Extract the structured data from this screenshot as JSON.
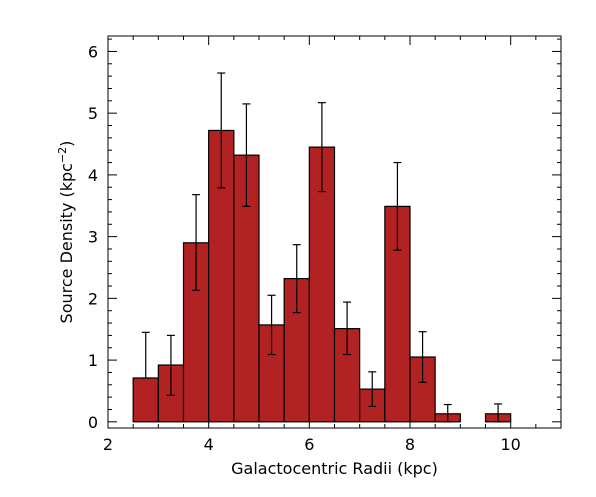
{
  "chart_data": {
    "type": "bar",
    "title": "",
    "xlabel": "Galactocentric Radii (kpc)",
    "ylabel_main": "Source Density (kpc",
    "ylabel_sup": "−2",
    "ylabel_close": ")",
    "xlim": [
      2,
      11
    ],
    "ylim": [
      -0.1,
      6.25
    ],
    "bin_width": 0.5,
    "bar_color": "#b22222",
    "x_ticks": [
      2,
      4,
      6,
      8,
      10
    ],
    "y_ticks": [
      0,
      1,
      2,
      3,
      4,
      5,
      6
    ],
    "bins": [
      {
        "x_start": 2.5,
        "value": 0.71,
        "err_lo": 0.71,
        "err_hi": 1.45
      },
      {
        "x_start": 3.0,
        "value": 0.92,
        "err_lo": 0.43,
        "err_hi": 1.4
      },
      {
        "x_start": 3.5,
        "value": 2.9,
        "err_lo": 2.13,
        "err_hi": 3.68
      },
      {
        "x_start": 4.0,
        "value": 4.72,
        "err_lo": 3.79,
        "err_hi": 5.65
      },
      {
        "x_start": 4.5,
        "value": 4.32,
        "err_lo": 3.49,
        "err_hi": 5.15
      },
      {
        "x_start": 5.0,
        "value": 1.57,
        "err_lo": 1.09,
        "err_hi": 2.05
      },
      {
        "x_start": 5.5,
        "value": 2.32,
        "err_lo": 1.77,
        "err_hi": 2.87
      },
      {
        "x_start": 6.0,
        "value": 4.45,
        "err_lo": 3.73,
        "err_hi": 5.17
      },
      {
        "x_start": 6.5,
        "value": 1.51,
        "err_lo": 1.09,
        "err_hi": 1.94
      },
      {
        "x_start": 7.0,
        "value": 0.53,
        "err_lo": 0.25,
        "err_hi": 0.81
      },
      {
        "x_start": 7.5,
        "value": 3.49,
        "err_lo": 2.78,
        "err_hi": 4.2
      },
      {
        "x_start": 8.0,
        "value": 1.05,
        "err_lo": 0.64,
        "err_hi": 1.46
      },
      {
        "x_start": 8.5,
        "value": 0.13,
        "err_lo": 0.0,
        "err_hi": 0.28
      },
      {
        "x_start": 9.5,
        "value": 0.13,
        "err_lo": 0.0,
        "err_hi": 0.29
      }
    ]
  }
}
